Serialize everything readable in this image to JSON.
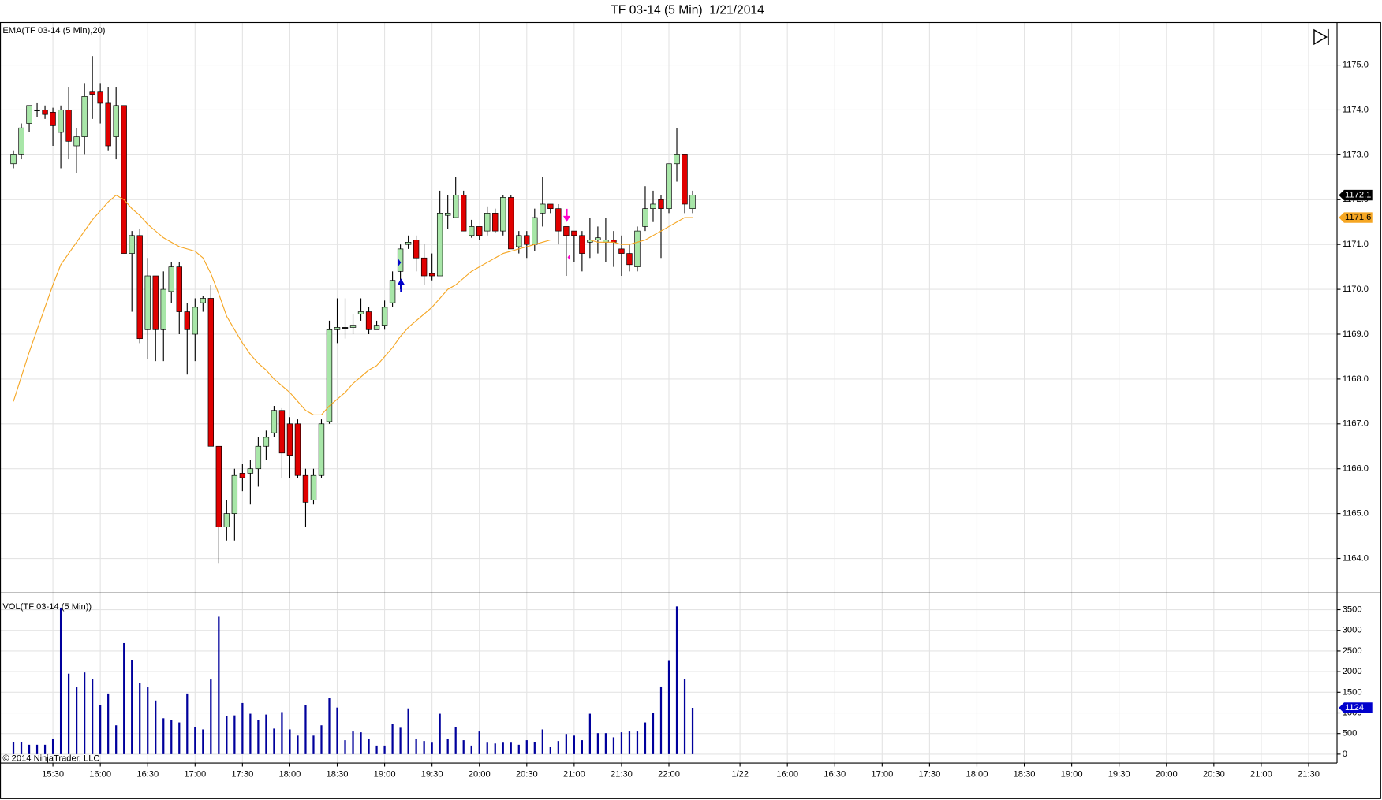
{
  "copyright": "© 2014 NinjaTrader, LLC",
  "chart_data": [
    {
      "type": "candlestick",
      "title": "TF 03-14 (5 Min)  1/21/2014",
      "up_color": "#a8e6a8",
      "down_color": "#e00000",
      "grid": true,
      "x": [
        0,
        1,
        2,
        3,
        4,
        5,
        6,
        7,
        8,
        9,
        10,
        11,
        12,
        13,
        14,
        15,
        16,
        17,
        18,
        19,
        20,
        21,
        22,
        23,
        24,
        25,
        26,
        27,
        28,
        29,
        30,
        31,
        32,
        33,
        34,
        35,
        36,
        37,
        38,
        39,
        40,
        41,
        42,
        43,
        44,
        45,
        46,
        47,
        48,
        49,
        50,
        51,
        52,
        53,
        54,
        55,
        56,
        57,
        58,
        59,
        60,
        61,
        62,
        63,
        64,
        65,
        66,
        67,
        68,
        69,
        70,
        71,
        72,
        73,
        74,
        75,
        76,
        77,
        78,
        79,
        80,
        81,
        82,
        83,
        84,
        85,
        86
      ],
      "open": [
        1172.8,
        1173.0,
        1173.7,
        1174.0,
        1174.0,
        1173.95,
        1173.5,
        1174.0,
        1173.2,
        1173.4,
        1174.4,
        1174.4,
        1174.15,
        1173.4,
        1174.1,
        1170.8,
        1171.2,
        1169.1,
        1170.3,
        1169.1,
        1169.95,
        1170.5,
        1169.5,
        1169.0,
        1169.7,
        1169.8,
        1166.5,
        1164.7,
        1165.0,
        1165.9,
        1165.9,
        1166.0,
        1166.5,
        1166.8,
        1167.3,
        1167.0,
        1167.0,
        1165.85,
        1165.3,
        1165.85,
        1167.05,
        1169.1,
        1169.15,
        1169.15,
        1169.45,
        1169.5,
        1169.1,
        1169.2,
        1169.7,
        1170.4,
        1171.0,
        1171.1,
        1170.7,
        1170.35,
        1170.3,
        1171.65,
        1171.6,
        1172.1,
        1171.2,
        1171.4,
        1171.3,
        1171.7,
        1171.3,
        1172.05,
        1170.95,
        1171.2,
        1171.0,
        1171.7,
        1171.9,
        1171.8,
        1171.4,
        1171.3,
        1171.2,
        1171.05,
        1171.1,
        1171.05,
        1171.1,
        1170.9,
        1170.8,
        1170.5,
        1171.4,
        1171.8,
        1172.0,
        1171.8,
        1172.8,
        1173.0,
        1171.8
      ],
      "high": [
        1173.1,
        1173.7,
        1174.1,
        1174.15,
        1174.1,
        1174.05,
        1174.1,
        1174.5,
        1173.6,
        1174.6,
        1175.2,
        1174.6,
        1174.5,
        1174.5,
        1174.1,
        1171.3,
        1171.35,
        1170.7,
        1170.3,
        1170.4,
        1170.6,
        1170.6,
        1169.7,
        1169.8,
        1169.85,
        1170.1,
        1166.5,
        1165.3,
        1166.0,
        1166.1,
        1166.2,
        1166.7,
        1166.85,
        1167.4,
        1167.35,
        1167.15,
        1167.1,
        1166.0,
        1166.0,
        1167.1,
        1169.3,
        1169.8,
        1169.8,
        1169.45,
        1169.8,
        1169.6,
        1169.3,
        1169.75,
        1170.4,
        1171.0,
        1171.2,
        1171.2,
        1171.0,
        1170.8,
        1172.2,
        1172.1,
        1172.5,
        1172.2,
        1171.55,
        1171.4,
        1171.85,
        1171.8,
        1172.1,
        1172.1,
        1171.3,
        1171.3,
        1171.8,
        1172.5,
        1171.9,
        1171.9,
        1171.4,
        1171.3,
        1171.3,
        1171.6,
        1171.4,
        1171.6,
        1171.3,
        1171.2,
        1171.0,
        1171.4,
        1172.3,
        1172.2,
        1172.1,
        1172.8,
        1173.6,
        1173.0,
        1172.2
      ],
      "low": [
        1172.7,
        1172.9,
        1173.5,
        1173.85,
        1173.8,
        1173.2,
        1172.7,
        1172.9,
        1172.6,
        1173.0,
        1173.8,
        1173.7,
        1173.1,
        1172.9,
        1170.8,
        1169.5,
        1168.8,
        1168.45,
        1168.4,
        1168.4,
        1169.7,
        1169.0,
        1168.1,
        1168.4,
        1169.5,
        1166.5,
        1163.9,
        1164.4,
        1164.4,
        1165.5,
        1165.2,
        1165.6,
        1166.2,
        1166.7,
        1165.8,
        1165.8,
        1165.8,
        1164.7,
        1165.2,
        1165.8,
        1167.0,
        1168.8,
        1168.9,
        1169.0,
        1169.3,
        1169.0,
        1169.1,
        1169.1,
        1169.6,
        1170.0,
        1170.9,
        1170.4,
        1170.1,
        1170.2,
        1170.3,
        1171.35,
        1171.6,
        1171.3,
        1171.15,
        1171.1,
        1171.2,
        1171.25,
        1171.2,
        1170.9,
        1170.8,
        1170.7,
        1170.85,
        1171.4,
        1171.7,
        1171.0,
        1170.3,
        1170.6,
        1170.4,
        1170.7,
        1170.8,
        1170.6,
        1170.5,
        1170.3,
        1170.4,
        1170.4,
        1171.3,
        1171.5,
        1170.7,
        1171.7,
        1172.4,
        1171.7,
        1171.7
      ],
      "close": [
        1173.0,
        1173.6,
        1174.1,
        1174.0,
        1173.9,
        1173.65,
        1174.0,
        1173.3,
        1173.4,
        1174.3,
        1174.35,
        1174.15,
        1173.2,
        1174.1,
        1170.8,
        1171.2,
        1168.9,
        1170.3,
        1169.1,
        1170.0,
        1170.5,
        1169.5,
        1169.1,
        1169.6,
        1169.8,
        1166.5,
        1164.7,
        1165.0,
        1165.85,
        1165.8,
        1166.0,
        1166.5,
        1166.7,
        1167.3,
        1166.35,
        1166.3,
        1165.85,
        1165.25,
        1165.85,
        1167.0,
        1169.1,
        1169.15,
        1169.15,
        1169.2,
        1169.5,
        1169.1,
        1169.2,
        1169.6,
        1170.2,
        1170.9,
        1171.05,
        1170.7,
        1170.3,
        1170.3,
        1171.7,
        1171.7,
        1172.1,
        1171.3,
        1171.4,
        1171.2,
        1171.7,
        1171.3,
        1172.05,
        1170.9,
        1171.2,
        1171.0,
        1171.6,
        1171.9,
        1171.8,
        1171.3,
        1171.2,
        1171.2,
        1170.8,
        1171.1,
        1171.15,
        1171.1,
        1171.05,
        1170.8,
        1170.55,
        1171.3,
        1171.8,
        1171.9,
        1171.8,
        1172.8,
        1173.0,
        1171.9,
        1172.1
      ],
      "series": [
        {
          "name": "EMA(TF 03-14 (5 Min),20)",
          "color": "#f5a623",
          "values": [
            1167.5,
            1168.05,
            1168.6,
            1169.1,
            1169.6,
            1170.1,
            1170.55,
            1170.8,
            1171.05,
            1171.3,
            1171.55,
            1171.75,
            1171.95,
            1172.1,
            1172.0,
            1171.8,
            1171.65,
            1171.45,
            1171.3,
            1171.15,
            1171.05,
            1170.95,
            1170.9,
            1170.85,
            1170.7,
            1170.35,
            1169.9,
            1169.4,
            1169.1,
            1168.8,
            1168.55,
            1168.35,
            1168.2,
            1168.0,
            1167.85,
            1167.7,
            1167.5,
            1167.3,
            1167.2,
            1167.2,
            1167.4,
            1167.55,
            1167.7,
            1167.9,
            1168.05,
            1168.2,
            1168.3,
            1168.5,
            1168.7,
            1168.95,
            1169.15,
            1169.3,
            1169.45,
            1169.6,
            1169.8,
            1170.0,
            1170.1,
            1170.25,
            1170.4,
            1170.5,
            1170.6,
            1170.7,
            1170.8,
            1170.85,
            1170.9,
            1170.95,
            1171.0,
            1171.05,
            1171.1,
            1171.1,
            1171.1,
            1171.1,
            1171.1,
            1171.1,
            1171.05,
            1171.05,
            1171.05,
            1171.0,
            1171.0,
            1171.05,
            1171.1,
            1171.2,
            1171.3,
            1171.4,
            1171.5,
            1171.6,
            1171.6
          ]
        }
      ],
      "xlim": [
        -1.7,
        167.6
      ],
      "ylim": [
        1163.25,
        1175.96
      ],
      "yticks": [
        {
          "value": 1164,
          "label": "1164.0"
        },
        {
          "value": 1165,
          "label": "1165.0"
        },
        {
          "value": 1166,
          "label": "1166.0"
        },
        {
          "value": 1167,
          "label": "1167.0"
        },
        {
          "value": 1168,
          "label": "1168.0"
        },
        {
          "value": 1169,
          "label": "1169.0"
        },
        {
          "value": 1170,
          "label": "1170.0"
        },
        {
          "value": 1171,
          "label": "1171.0"
        },
        {
          "value": 1172,
          "label": "1172.0"
        },
        {
          "value": 1173,
          "label": "1173.0"
        },
        {
          "value": 1174,
          "label": "1174.0"
        },
        {
          "value": 1175,
          "label": "1175.0"
        }
      ],
      "markers": [
        {
          "value": 1172.1,
          "label": "1172.1",
          "color": "#000000",
          "text_color": "#ffffff"
        },
        {
          "value": 1171.6,
          "label": "1171.6",
          "color": "#f5a623",
          "text_color": "#000000"
        }
      ]
    },
    {
      "type": "bar",
      "grid": true,
      "series": [
        {
          "name": "VOL(TF 03-14 (5 Min))",
          "color": "#00009c",
          "values": [
            300,
            300,
            230,
            230,
            230,
            380,
            3550,
            1950,
            1620,
            1980,
            1830,
            1200,
            1470,
            700,
            2690,
            2280,
            1730,
            1620,
            1300,
            870,
            830,
            770,
            1470,
            660,
            600,
            1810,
            3330,
            920,
            940,
            1240,
            980,
            830,
            960,
            620,
            1020,
            600,
            450,
            1200,
            450,
            700,
            1370,
            1130,
            340,
            550,
            530,
            380,
            210,
            210,
            730,
            640,
            1110,
            380,
            320,
            280,
            980,
            380,
            660,
            340,
            210,
            550,
            280,
            260,
            280,
            280,
            230,
            340,
            300,
            600,
            170,
            320,
            490,
            450,
            340,
            980,
            510,
            510,
            410,
            530,
            550,
            550,
            770,
            1000,
            1640,
            2260,
            3580,
            1830,
            1124
          ]
        }
      ],
      "xlim": [
        -1.7,
        167.6
      ],
      "ylim": [
        -213,
        3884
      ],
      "yticks": [
        0,
        500,
        1000,
        1500,
        2000,
        2500,
        3000,
        3500
      ],
      "xticks": [
        {
          "value": 5,
          "label": "15:30"
        },
        {
          "value": 11,
          "label": "16:00"
        },
        {
          "value": 17,
          "label": "16:30"
        },
        {
          "value": 23,
          "label": "17:00"
        },
        {
          "value": 29,
          "label": "17:30"
        },
        {
          "value": 35,
          "label": "18:00"
        },
        {
          "value": 41,
          "label": "18:30"
        },
        {
          "value": 47,
          "label": "19:00"
        },
        {
          "value": 53,
          "label": "19:30"
        },
        {
          "value": 59,
          "label": "20:00"
        },
        {
          "value": 65,
          "label": "20:30"
        },
        {
          "value": 71,
          "label": "21:00"
        },
        {
          "value": 77,
          "label": "21:30"
        },
        {
          "value": 83,
          "label": "22:00"
        },
        {
          "value": 92,
          "label": "1/22"
        },
        {
          "value": 98,
          "label": "16:00"
        },
        {
          "value": 104,
          "label": "16:30"
        },
        {
          "value": 110,
          "label": "17:00"
        },
        {
          "value": 116,
          "label": "17:30"
        },
        {
          "value": 122,
          "label": "18:00"
        },
        {
          "value": 128,
          "label": "18:30"
        },
        {
          "value": 134,
          "label": "19:00"
        },
        {
          "value": 140,
          "label": "19:30"
        },
        {
          "value": 146,
          "label": "20:00"
        },
        {
          "value": 152,
          "label": "20:30"
        },
        {
          "value": 158,
          "label": "21:00"
        },
        {
          "value": 164,
          "label": "21:30"
        }
      ],
      "markers": [
        {
          "value": 1124,
          "label": "1124",
          "color": "#0000cc",
          "text_color": "#ffffff"
        }
      ]
    }
  ]
}
